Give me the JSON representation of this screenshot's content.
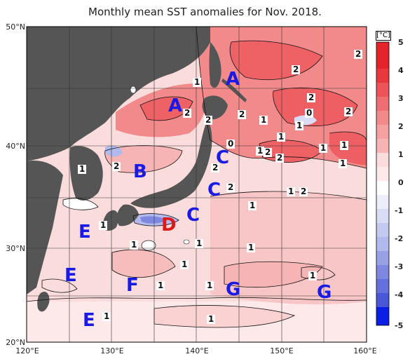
{
  "title": "Monthly mean SST anomalies for Nov. 2018.",
  "lat_labels": [
    "50°N",
    "40°N",
    "30°N",
    "20°N"
  ],
  "lon_labels": [
    "120°E",
    "130°E",
    "140°E",
    "150°E",
    "160°E"
  ],
  "colorbar": {
    "unit": "[°C]",
    "ticks": [
      "5",
      "4",
      "3",
      "2",
      "1",
      "0",
      "-1",
      "-2",
      "-3",
      "-4",
      "-5"
    ],
    "colors": [
      "#e4232b",
      "#ed5358",
      "#f28a8c",
      "#f7b4b4",
      "#fbdcdc",
      "#ffffff",
      "#d8dcf4",
      "#b2b9ec",
      "#7e88e0",
      "#4a58d8",
      "#0a1ee6"
    ]
  },
  "regions": [
    {
      "label": "A",
      "color": "#1a1ae6"
    },
    {
      "label": "A",
      "color": "#1a1ae6"
    },
    {
      "label": "B",
      "color": "#1a1ae6"
    },
    {
      "label": "C",
      "color": "#1a1ae6"
    },
    {
      "label": "C",
      "color": "#1a1ae6"
    },
    {
      "label": "C",
      "color": "#1a1ae6"
    },
    {
      "label": "D",
      "color": "#e01818"
    },
    {
      "label": "E",
      "color": "#1a1ae6"
    },
    {
      "label": "E",
      "color": "#1a1ae6"
    },
    {
      "label": "E",
      "color": "#1a1ae6"
    },
    {
      "label": "F",
      "color": "#1a1ae6"
    },
    {
      "label": "G",
      "color": "#1a1ae6"
    },
    {
      "label": "G",
      "color": "#1a1ae6"
    }
  ],
  "contour_labels": [
    "1",
    "2",
    "2",
    "2",
    "2",
    "2",
    "1",
    "1",
    "0",
    "2",
    "2",
    "1",
    "1",
    "0",
    "1",
    "2",
    "2",
    "1",
    "2",
    "2",
    "2",
    "1",
    "1",
    "2",
    "1",
    "1",
    "1",
    "1",
    "1",
    "1",
    "1",
    "1",
    "1",
    "1",
    "1",
    "1"
  ]
}
